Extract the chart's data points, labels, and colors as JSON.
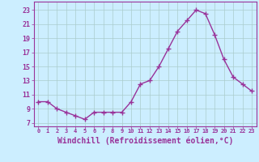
{
  "x": [
    0,
    1,
    2,
    3,
    4,
    5,
    6,
    7,
    8,
    9,
    10,
    11,
    12,
    13,
    14,
    15,
    16,
    17,
    18,
    19,
    20,
    21,
    22,
    23
  ],
  "y": [
    10.0,
    10.0,
    9.0,
    8.5,
    8.0,
    7.5,
    8.5,
    8.5,
    8.5,
    8.5,
    10.0,
    12.5,
    13.0,
    15.0,
    17.5,
    20.0,
    21.5,
    23.0,
    22.5,
    19.5,
    16.0,
    13.5,
    12.5,
    11.5
  ],
  "line_color": "#993399",
  "marker": "+",
  "marker_size": 4,
  "marker_linewidth": 1.0,
  "xlabel": "Windchill (Refroidissement éolien,°C)",
  "xlabel_fontsize": 7,
  "xtick_labels": [
    "0",
    "1",
    "2",
    "3",
    "4",
    "5",
    "6",
    "7",
    "8",
    "9",
    "10",
    "11",
    "12",
    "13",
    "14",
    "15",
    "16",
    "17",
    "18",
    "19",
    "20",
    "21",
    "22",
    "23"
  ],
  "ytick_values": [
    7,
    9,
    11,
    13,
    15,
    17,
    19,
    21,
    23
  ],
  "ytick_labels": [
    "7",
    "9",
    "11",
    "13",
    "15",
    "17",
    "19",
    "21",
    "23"
  ],
  "ylim": [
    6.5,
    24.2
  ],
  "xlim": [
    -0.5,
    23.5
  ],
  "bg_color": "#cceeff",
  "grid_color": "#aacccc",
  "tick_color": "#993399",
  "label_color": "#993399",
  "linewidth": 1.0,
  "spine_color": "#993399"
}
